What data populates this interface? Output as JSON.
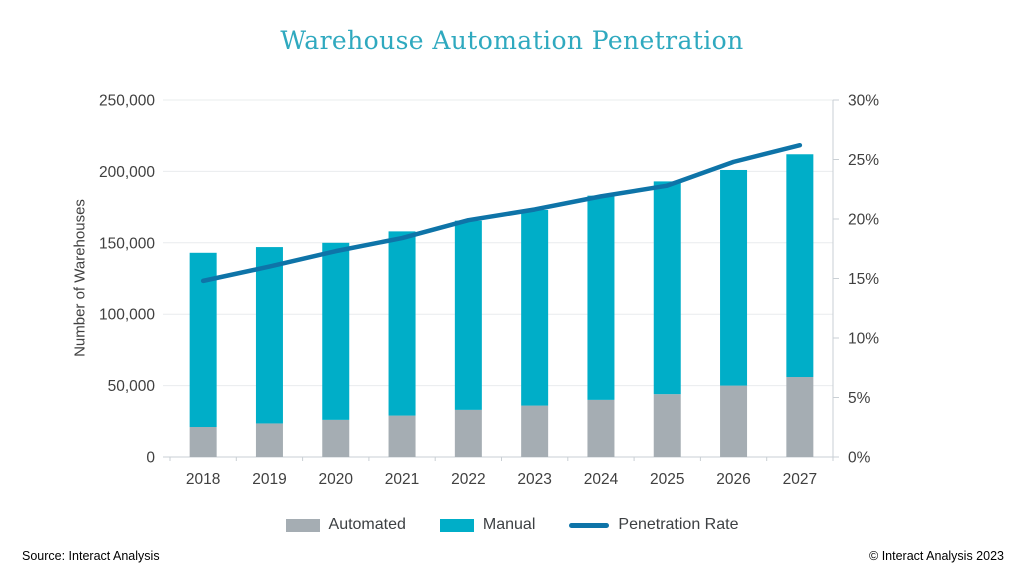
{
  "title": "Warehouse Automation Penetration",
  "y_axis_title": "Number of Warehouses",
  "footer": {
    "source": "Source: Interact Analysis",
    "copyright": "© Interact Analysis 2023"
  },
  "legend": [
    {
      "label": "Automated",
      "type": "swatch",
      "color": "#A5ADB3"
    },
    {
      "label": "Manual",
      "type": "swatch",
      "color": "#00AEC8"
    },
    {
      "label": "Penetration Rate",
      "type": "line",
      "color": "#0E74A8"
    }
  ],
  "colors": {
    "automated_bar": "#A5ADB3",
    "manual_bar": "#00AEC8",
    "penetration_line": "#0E74A8",
    "title_text": "#2FA9BF",
    "axis_text": "#404040",
    "gridline": "#E9ECEE",
    "axis_line": "#C9CFD4"
  },
  "chart_data": {
    "type": "bar",
    "subtype": "stacked-bar-with-line",
    "title": "Warehouse Automation Penetration",
    "categories": [
      "2018",
      "2019",
      "2020",
      "2021",
      "2022",
      "2023",
      "2024",
      "2025",
      "2026",
      "2027"
    ],
    "series": [
      {
        "name": "Automated",
        "type": "bar",
        "stack": true,
        "axis": "left",
        "color": "#A5ADB3",
        "values": [
          21000,
          23500,
          26000,
          29000,
          33000,
          36000,
          40000,
          44000,
          50000,
          56000
        ]
      },
      {
        "name": "Manual",
        "type": "bar",
        "stack": true,
        "axis": "left",
        "color": "#00AEC8",
        "values": [
          122000,
          123500,
          124000,
          129000,
          132500,
          137000,
          143000,
          149000,
          151000,
          156000
        ]
      },
      {
        "name": "Penetration Rate",
        "type": "line",
        "axis": "right",
        "color": "#0E74A8",
        "values": [
          14.8,
          16.0,
          17.3,
          18.4,
          19.9,
          20.8,
          21.9,
          22.8,
          24.8,
          26.2
        ]
      }
    ],
    "totals": [
      143000,
      147000,
      150000,
      158000,
      165500,
      173000,
      183000,
      193000,
      201000,
      212000
    ],
    "xlabel": "",
    "ylabel": "Number of Warehouses",
    "left_axis": {
      "min": 0,
      "max": 250000,
      "step": 50000,
      "tick_labels": [
        "0",
        "50,000",
        "100,000",
        "150,000",
        "200,000",
        "250,000"
      ]
    },
    "right_axis": {
      "min": 0,
      "max": 30,
      "step": 5,
      "tick_labels": [
        "0%",
        "5%",
        "10%",
        "15%",
        "20%",
        "25%",
        "30%"
      ]
    },
    "grid": true,
    "legend_position": "bottom"
  }
}
